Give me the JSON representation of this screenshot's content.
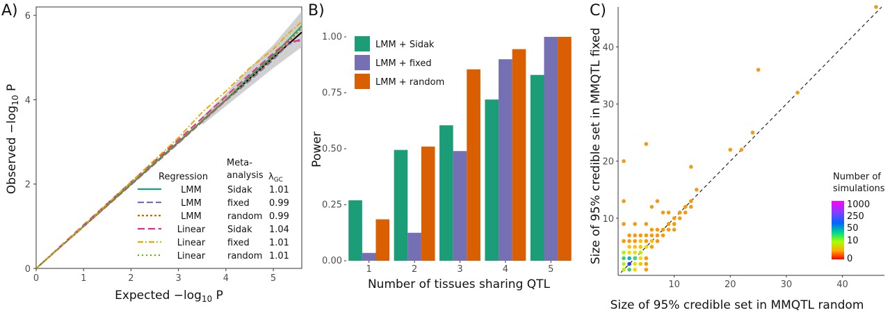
{
  "chart_data": [
    {
      "panel": "A)",
      "type": "line",
      "xlabel": "Expected −log10 P",
      "ylabel": "Observed −log10 P",
      "xlim": [
        0,
        5.6
      ],
      "ylim": [
        0,
        6.2
      ],
      "xticks": [
        "0",
        "1",
        "2",
        "3",
        "4",
        "5"
      ],
      "yticks": [
        "0",
        "2",
        "4",
        "6"
      ],
      "legend": {
        "headers": [
          "Regression",
          "Meta-",
          "analysis",
          "λGC"
        ],
        "lambda_symbol": "λ",
        "lambda_sub": "GC",
        "rows": [
          {
            "regression": "LMM",
            "meta": "Sidak",
            "lambda": "1.01",
            "color": "#1b9e77",
            "dash": ""
          },
          {
            "regression": "LMM",
            "meta": "fixed",
            "lambda": "0.99",
            "color": "#7570b3",
            "dash": "9,4"
          },
          {
            "regression": "LMM",
            "meta": "random",
            "lambda": "0.99",
            "color": "#d95f02",
            "dash": "3,3"
          },
          {
            "regression": "Linear",
            "meta": "Sidak",
            "lambda": "1.04",
            "color": "#e7298a",
            "dash": "10,5"
          },
          {
            "regression": "Linear",
            "meta": "fixed",
            "lambda": "1.01",
            "color": "#e6ab02",
            "dash": "8,3,2,3"
          },
          {
            "regression": "Linear",
            "meta": "random",
            "lambda": "1.01",
            "color": "#66a61e",
            "dash": "2,4"
          }
        ]
      },
      "series": [
        {
          "name": "LMM Sidak",
          "color": "#1b9e77",
          "dash": "",
          "x": [
            0,
            1,
            2,
            3,
            4,
            4.5,
            5,
            5.3,
            5.6
          ],
          "y": [
            0,
            1.0,
            2.0,
            3.0,
            4.0,
            4.55,
            5.05,
            5.4,
            5.75
          ]
        },
        {
          "name": "LMM fixed",
          "color": "#7570b3",
          "dash": "9,4",
          "x": [
            0,
            1,
            2,
            3,
            4,
            4.5,
            5,
            5.3,
            5.6
          ],
          "y": [
            0,
            0.99,
            1.98,
            2.97,
            3.98,
            4.45,
            4.95,
            5.3,
            5.45
          ]
        },
        {
          "name": "LMM random",
          "color": "#d95f02",
          "dash": "3,3",
          "x": [
            0,
            1,
            2,
            3,
            4,
            4.5,
            5,
            5.3,
            5.6
          ],
          "y": [
            0,
            0.99,
            1.99,
            2.98,
            3.99,
            4.5,
            5.0,
            5.35,
            5.7
          ]
        },
        {
          "name": "Linear Sidak",
          "color": "#e7298a",
          "dash": "10,5",
          "x": [
            0,
            1,
            2,
            3,
            4,
            4.5,
            5,
            5.3,
            5.6
          ],
          "y": [
            0,
            1.03,
            2.05,
            3.05,
            4.08,
            4.6,
            5.1,
            5.38,
            5.4
          ]
        },
        {
          "name": "Linear fixed",
          "color": "#e6ab02",
          "dash": "8,3,2,3",
          "x": [
            0,
            1,
            2,
            3,
            3.5,
            4,
            4.5,
            5,
            5.3,
            5.6
          ],
          "y": [
            0,
            1.01,
            2.05,
            3.1,
            3.7,
            4.2,
            4.75,
            5.2,
            5.55,
            5.85
          ]
        },
        {
          "name": "Linear random",
          "color": "#66a61e",
          "dash": "2,4",
          "x": [
            0,
            1,
            2,
            3,
            4,
            4.5,
            5,
            5.3,
            5.6
          ],
          "y": [
            0,
            1.01,
            2.01,
            3.01,
            4.02,
            4.52,
            5.03,
            5.4,
            5.7
          ]
        }
      ],
      "reference_line": {
        "x": [
          0,
          5.6
        ],
        "y": [
          0,
          5.6
        ],
        "color": "#000000"
      },
      "confidence_band": {
        "x": [
          3.5,
          4,
          4.5,
          5,
          5.3,
          5.6
        ],
        "lower": [
          3.4,
          3.85,
          4.3,
          4.75,
          5.0,
          5.25
        ],
        "upper": [
          3.6,
          4.15,
          4.75,
          5.3,
          5.7,
          6.1
        ]
      }
    },
    {
      "panel": "B)",
      "type": "bar",
      "xlabel": "Number of tissues sharing QTL",
      "ylabel": "Power",
      "categories": [
        "1",
        "2",
        "3",
        "4",
        "5"
      ],
      "ylim": [
        0,
        1.0
      ],
      "yticks": [
        "0.00",
        "0.25",
        "0.50",
        "0.75",
        "1.00"
      ],
      "series": [
        {
          "name": "LMM + Sidak",
          "color": "#1b9e77",
          "values": [
            0.27,
            0.495,
            0.605,
            0.72,
            0.83
          ]
        },
        {
          "name": "LMM + fixed",
          "color": "#7570b3",
          "values": [
            0.035,
            0.125,
            0.49,
            0.9,
            1.0
          ]
        },
        {
          "name": "LMM + random",
          "color": "#d95f02",
          "values": [
            0.185,
            0.51,
            0.855,
            0.945,
            1.0
          ]
        }
      ]
    },
    {
      "panel": "C)",
      "type": "scatter",
      "xlabel": "Size of 95% credible set in MMQTL random",
      "ylabel": "Size of 95% credible set in MMQTL fixed",
      "xlim": [
        0,
        47
      ],
      "ylim": [
        0,
        47
      ],
      "xticks": [
        "10",
        "20",
        "30",
        "40"
      ],
      "yticks": [
        "10",
        "20",
        "30",
        "40"
      ],
      "legend": {
        "title_line1": "Number of",
        "title_line2": "simulations",
        "labels": [
          "1000",
          "250",
          "50",
          "10",
          "0"
        ]
      },
      "points": [
        {
          "x": 1,
          "y": 1,
          "n": 12
        },
        {
          "x": 1,
          "y": 2,
          "n": 20
        },
        {
          "x": 1,
          "y": 3,
          "n": 30
        },
        {
          "x": 2,
          "y": 1,
          "n": 40
        },
        {
          "x": 2,
          "y": 2,
          "n": 300
        },
        {
          "x": 2,
          "y": 3,
          "n": 60
        },
        {
          "x": 3,
          "y": 3,
          "n": 25
        },
        {
          "x": 3,
          "y": 2,
          "n": 10
        },
        {
          "x": 3,
          "y": 1,
          "n": 8
        },
        {
          "x": 1,
          "y": 4,
          "n": 14
        },
        {
          "x": 2,
          "y": 4,
          "n": 10
        },
        {
          "x": 4,
          "y": 4,
          "n": 12
        },
        {
          "x": 3,
          "y": 4,
          "n": 10
        },
        {
          "x": 4,
          "y": 3,
          "n": 8
        },
        {
          "x": 4,
          "y": 2,
          "n": 6
        },
        {
          "x": 5,
          "y": 5,
          "n": 8
        },
        {
          "x": 5,
          "y": 1,
          "n": 2
        },
        {
          "x": 5,
          "y": 2,
          "n": 2
        },
        {
          "x": 5,
          "y": 3,
          "n": 3
        },
        {
          "x": 4,
          "y": 5,
          "n": 5
        },
        {
          "x": 3,
          "y": 5,
          "n": 6
        },
        {
          "x": 2,
          "y": 5,
          "n": 4
        },
        {
          "x": 1,
          "y": 6,
          "n": 2
        },
        {
          "x": 2,
          "y": 6,
          "n": 2
        },
        {
          "x": 3,
          "y": 6,
          "n": 3
        },
        {
          "x": 4,
          "y": 6,
          "n": 4
        },
        {
          "x": 5,
          "y": 6,
          "n": 3
        },
        {
          "x": 6,
          "y": 6,
          "n": 4
        },
        {
          "x": 6,
          "y": 5,
          "n": 3
        },
        {
          "x": 6,
          "y": 7,
          "n": 3
        },
        {
          "x": 7,
          "y": 7,
          "n": 3
        },
        {
          "x": 7,
          "y": 6,
          "n": 2
        },
        {
          "x": 5,
          "y": 7,
          "n": 2
        },
        {
          "x": 4,
          "y": 7,
          "n": 2
        },
        {
          "x": 8,
          "y": 8,
          "n": 2
        },
        {
          "x": 8,
          "y": 7,
          "n": 2
        },
        {
          "x": 6,
          "y": 8,
          "n": 2
        },
        {
          "x": 9,
          "y": 9,
          "n": 2
        },
        {
          "x": 9,
          "y": 8,
          "n": 2
        },
        {
          "x": 7,
          "y": 8,
          "n": 2
        },
        {
          "x": 10,
          "y": 10,
          "n": 2
        },
        {
          "x": 10,
          "y": 9,
          "n": 2
        },
        {
          "x": 11,
          "y": 11,
          "n": 2
        },
        {
          "x": 12,
          "y": 12,
          "n": 2
        },
        {
          "x": 13,
          "y": 13,
          "n": 2
        },
        {
          "x": 13,
          "y": 12,
          "n": 1
        },
        {
          "x": 11,
          "y": 10,
          "n": 1
        },
        {
          "x": 12,
          "y": 11,
          "n": 1
        },
        {
          "x": 14,
          "y": 15,
          "n": 1
        },
        {
          "x": 1,
          "y": 20,
          "n": 1
        },
        {
          "x": 1,
          "y": 13,
          "n": 1
        },
        {
          "x": 1,
          "y": 9,
          "n": 1
        },
        {
          "x": 3,
          "y": 9,
          "n": 1
        },
        {
          "x": 5,
          "y": 9,
          "n": 1
        },
        {
          "x": 5,
          "y": 23,
          "n": 1
        },
        {
          "x": 6,
          "y": 12,
          "n": 1
        },
        {
          "x": 7,
          "y": 13,
          "n": 1
        },
        {
          "x": 8,
          "y": 11,
          "n": 1
        },
        {
          "x": 9,
          "y": 11,
          "n": 1
        },
        {
          "x": 13,
          "y": 19,
          "n": 1
        },
        {
          "x": 20,
          "y": 22,
          "n": 1
        },
        {
          "x": 22,
          "y": 22,
          "n": 1
        },
        {
          "x": 24,
          "y": 25,
          "n": 1
        },
        {
          "x": 25,
          "y": 36,
          "n": 1
        },
        {
          "x": 32,
          "y": 32,
          "n": 1
        },
        {
          "x": 46,
          "y": 47,
          "n": 1
        },
        {
          "x": 10,
          "y": 8,
          "n": 1
        },
        {
          "x": 2,
          "y": 7,
          "n": 2
        },
        {
          "x": 3,
          "y": 7,
          "n": 2
        }
      ]
    }
  ]
}
